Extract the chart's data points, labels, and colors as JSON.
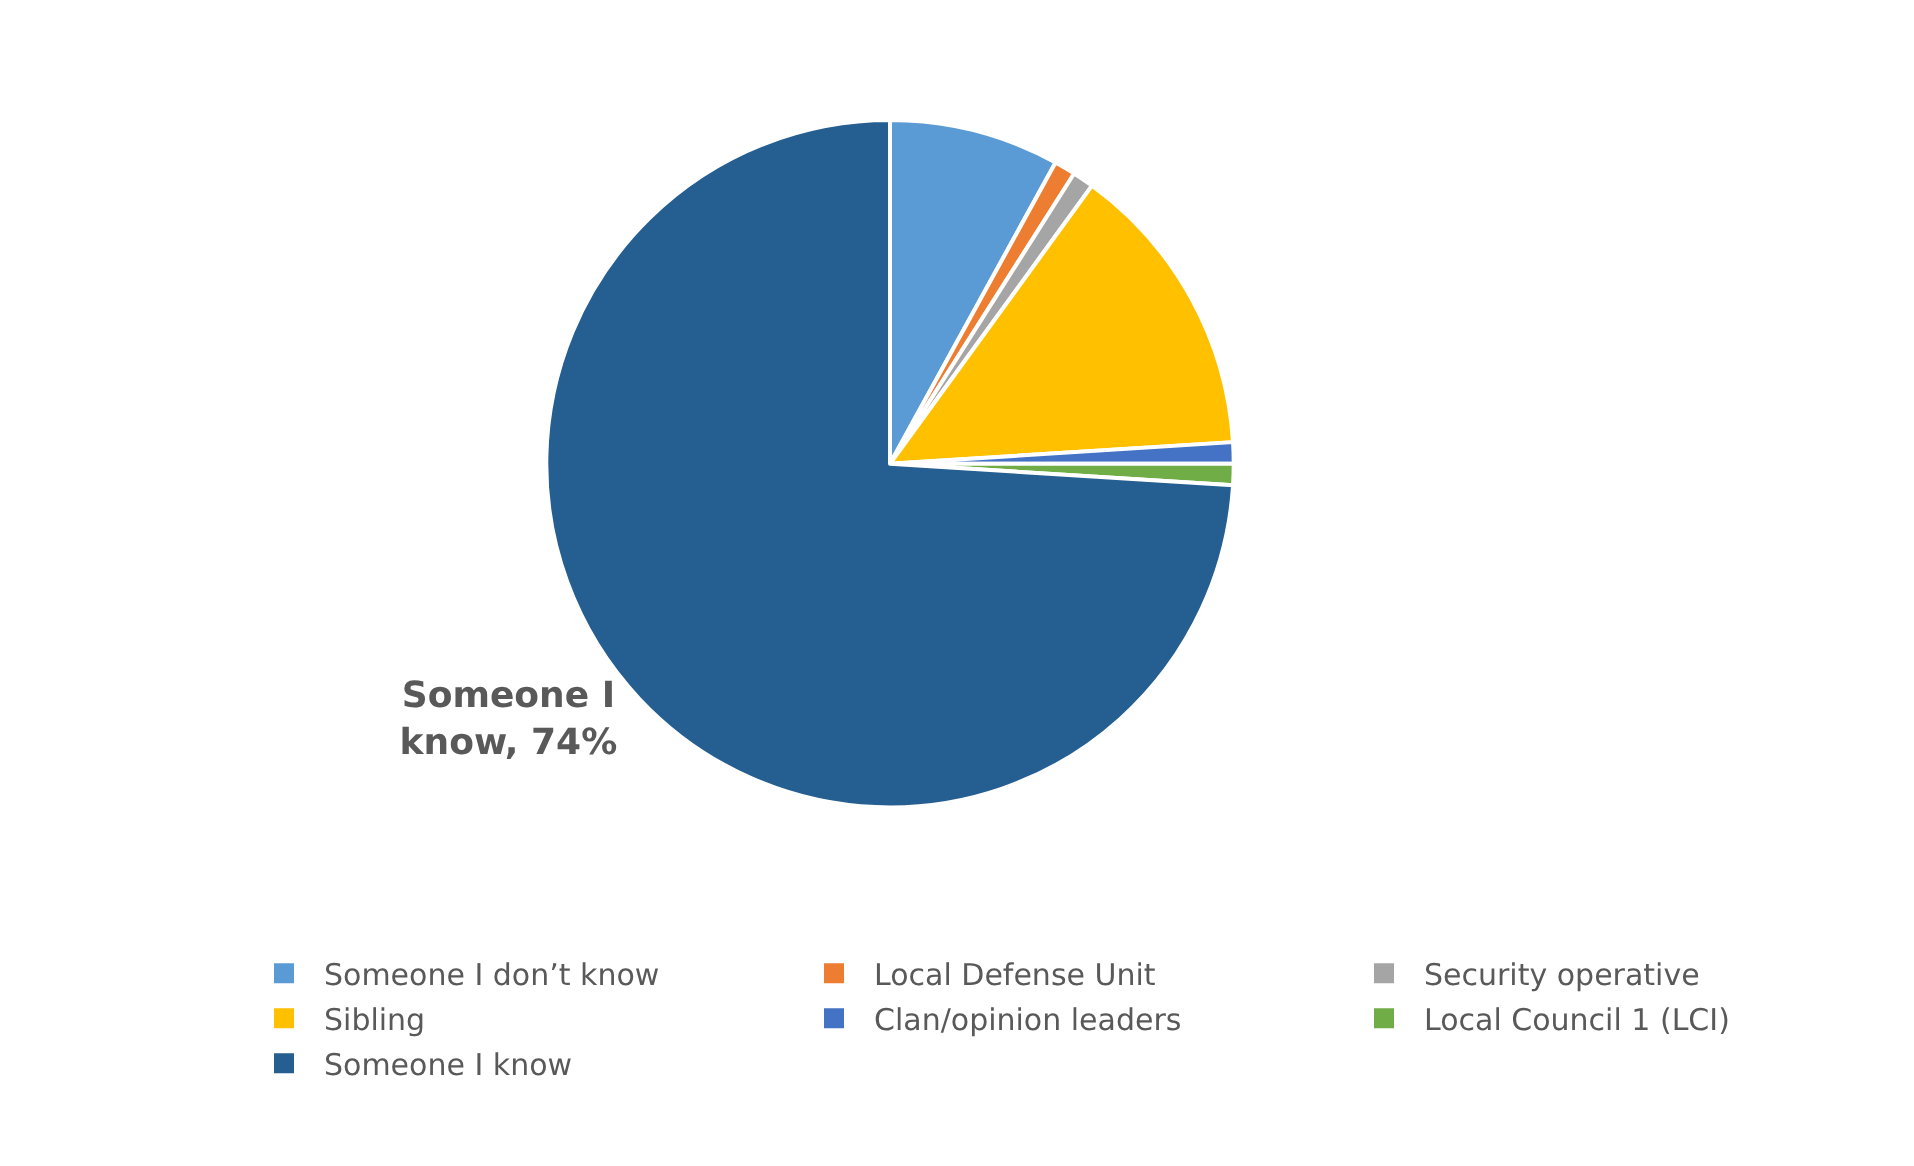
{
  "chart_data": {
    "type": "pie",
    "categories": [
      "Someone I don’t know",
      "Local Defense Unit",
      "Security operative",
      "Sibling",
      "Clan/opinion leaders",
      "Local Council 1 (LCI)",
      "Someone I know"
    ],
    "values": [
      8,
      1,
      1,
      14,
      1,
      1,
      74
    ],
    "colors": [
      "#5b9bd5",
      "#ed7d31",
      "#a5a5a5",
      "#ffc000",
      "#4472c4",
      "#70ad47",
      "#255e91"
    ],
    "value_labels": [
      null,
      null,
      null,
      null,
      null,
      null,
      "Someone I know, 74%"
    ],
    "legend": "bottom"
  }
}
